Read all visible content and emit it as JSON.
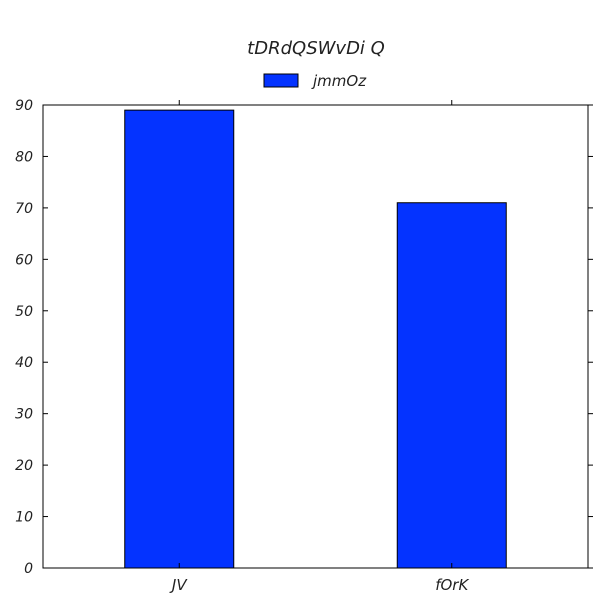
{
  "chart_data": {
    "type": "bar",
    "title": "tDRdQSWvDi Q",
    "categories": [
      "JV",
      "fOrK"
    ],
    "series": [
      {
        "name": "jmmOz",
        "values": [
          89,
          71
        ],
        "color": "#0433ff"
      }
    ],
    "xlabel": "",
    "ylabel": "",
    "ylim": [
      0,
      90
    ],
    "yticks": [
      0,
      10,
      20,
      30,
      40,
      50,
      60,
      70,
      80,
      90
    ],
    "grid": false,
    "legend_position": "top-center"
  }
}
